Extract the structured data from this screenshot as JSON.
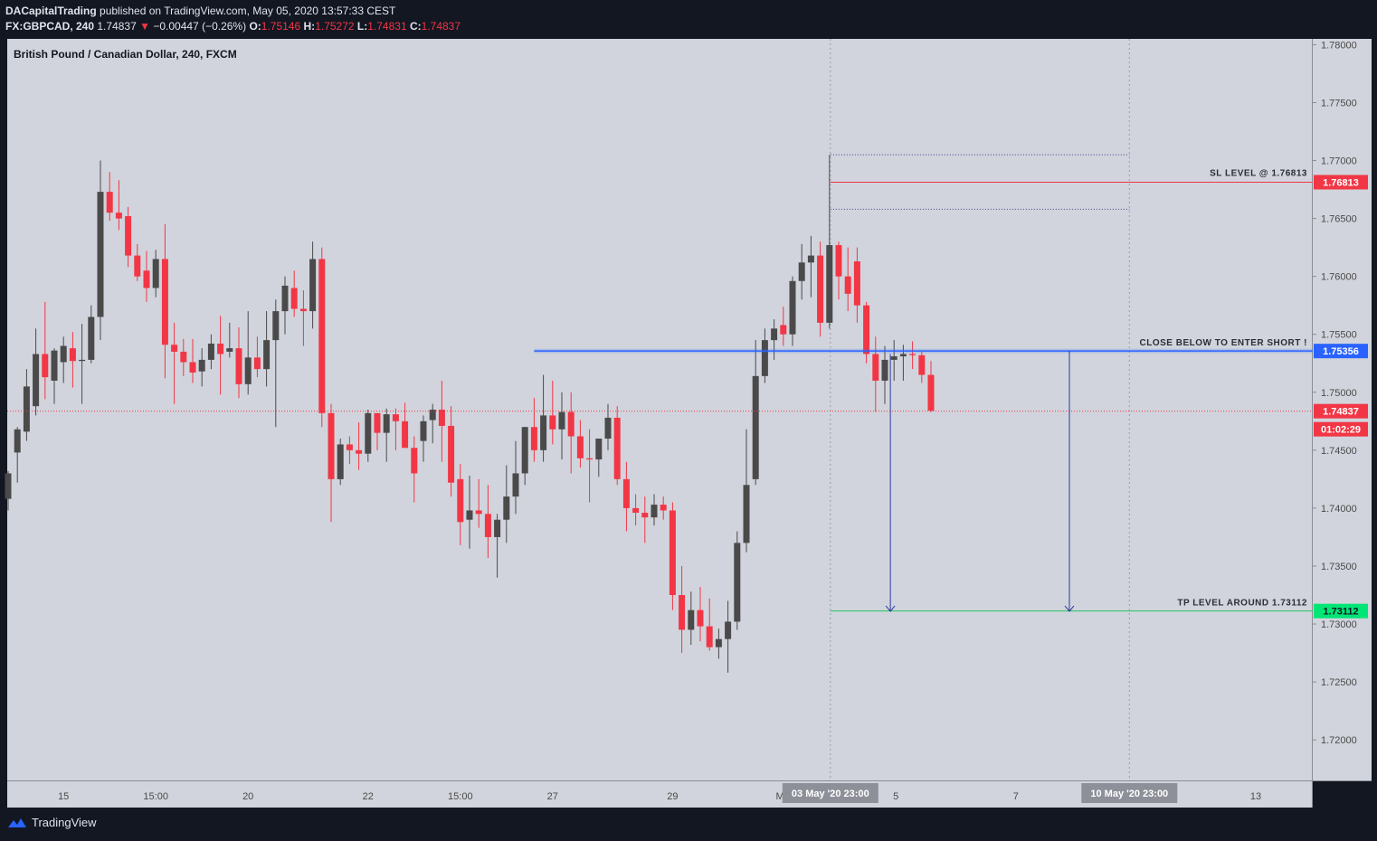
{
  "header": {
    "publisher": "DACapitalTrading",
    "published_text": "published on TradingView.com, May 05, 2020 13:57:33 CEST",
    "symbol": "FX:GBPCAD, 240",
    "last": "1.74837",
    "change_arrow": "▼",
    "change": "−0.00447 (−0.26%)",
    "o_label": "O:",
    "o": "1.75146",
    "h_label": "H:",
    "h": "1.75272",
    "l_label": "L:",
    "l": "1.74831",
    "c_label": "C:",
    "c": "1.74837"
  },
  "footer": {
    "brand": "TradingView"
  },
  "colors": {
    "background": "#d1d4dc",
    "frame": "#131722",
    "up": "#4a4a4a",
    "down": "#f23645",
    "accent_blue": "#2962ff",
    "tp_green": "#00e676"
  },
  "chart_data": {
    "type": "candlestick",
    "title": "British Pound / Canadian Dollar, 240, FXCM",
    "ylim": [
      1.7165,
      1.7805
    ],
    "y_ticks": [
      "1.78000",
      "1.77500",
      "1.77000",
      "1.76500",
      "1.76000",
      "1.75500",
      "1.75000",
      "1.74500",
      "1.74000",
      "1.73500",
      "1.73000",
      "1.72500",
      "1.72000"
    ],
    "x_ticks": [
      "15",
      "15:00",
      "20",
      "22",
      "15:00",
      "27",
      "29",
      "May",
      "5",
      "7",
      "13"
    ],
    "x_highlights": [
      "03 May '20  23:00",
      "10 May '20  23:00"
    ],
    "candles": [
      [
        1.7408,
        1.7432,
        1.7398,
        1.743
      ],
      [
        1.7448,
        1.747,
        1.7422,
        1.7468
      ],
      [
        1.7466,
        1.752,
        1.7458,
        1.7505
      ],
      [
        1.7488,
        1.7555,
        1.748,
        1.7533
      ],
      [
        1.7533,
        1.7578,
        1.7494,
        1.7513
      ],
      [
        1.751,
        1.7538,
        1.749,
        1.7536
      ],
      [
        1.7526,
        1.7548,
        1.7508,
        1.754
      ],
      [
        1.7538,
        1.7552,
        1.7504,
        1.7527
      ],
      [
        1.7527,
        1.7559,
        1.749,
        1.7528
      ],
      [
        1.7528,
        1.7575,
        1.7525,
        1.7565
      ],
      [
        1.7565,
        1.77,
        1.7545,
        1.7673
      ],
      [
        1.7673,
        1.769,
        1.7648,
        1.7655
      ],
      [
        1.7655,
        1.7683,
        1.764,
        1.765
      ],
      [
        1.7652,
        1.766,
        1.7608,
        1.7618
      ],
      [
        1.7618,
        1.7628,
        1.7596,
        1.76
      ],
      [
        1.7605,
        1.7622,
        1.7578,
        1.759
      ],
      [
        1.759,
        1.7623,
        1.7582,
        1.7615
      ],
      [
        1.7615,
        1.7645,
        1.7512,
        1.7541
      ],
      [
        1.7541,
        1.756,
        1.749,
        1.7535
      ],
      [
        1.7535,
        1.7546,
        1.7514,
        1.7526
      ],
      [
        1.7526,
        1.7546,
        1.7508,
        1.7517
      ],
      [
        1.7518,
        1.7538,
        1.7505,
        1.7528
      ],
      [
        1.7528,
        1.755,
        1.752,
        1.7542
      ],
      [
        1.7542,
        1.7566,
        1.7498,
        1.7533
      ],
      [
        1.7535,
        1.756,
        1.753,
        1.7538
      ],
      [
        1.7538,
        1.7556,
        1.7495,
        1.7507
      ],
      [
        1.7507,
        1.757,
        1.7498,
        1.753
      ],
      [
        1.753,
        1.7548,
        1.7513,
        1.752
      ],
      [
        1.752,
        1.757,
        1.7505,
        1.7545
      ],
      [
        1.7545,
        1.758,
        1.747,
        1.757
      ],
      [
        1.757,
        1.76,
        1.755,
        1.7592
      ],
      [
        1.759,
        1.7605,
        1.7565,
        1.7572
      ],
      [
        1.7572,
        1.7588,
        1.754,
        1.757
      ],
      [
        1.757,
        1.763,
        1.7555,
        1.7615
      ],
      [
        1.7615,
        1.7625,
        1.747,
        1.7482
      ],
      [
        1.7482,
        1.749,
        1.7388,
        1.7425
      ],
      [
        1.7425,
        1.746,
        1.742,
        1.7455
      ],
      [
        1.7455,
        1.7462,
        1.7438,
        1.745
      ],
      [
        1.745,
        1.7474,
        1.7433,
        1.7447
      ],
      [
        1.7447,
        1.7485,
        1.744,
        1.7482
      ],
      [
        1.7482,
        1.748,
        1.745,
        1.7465
      ],
      [
        1.7465,
        1.7486,
        1.744,
        1.7481
      ],
      [
        1.7481,
        1.7486,
        1.745,
        1.7475
      ],
      [
        1.7475,
        1.7491,
        1.7455,
        1.7452
      ],
      [
        1.7452,
        1.7462,
        1.7405,
        1.743
      ],
      [
        1.7458,
        1.748,
        1.744,
        1.7475
      ],
      [
        1.7476,
        1.749,
        1.7456,
        1.7485
      ],
      [
        1.7485,
        1.751,
        1.744,
        1.7471
      ],
      [
        1.7471,
        1.7488,
        1.741,
        1.7422
      ],
      [
        1.7425,
        1.7438,
        1.7368,
        1.7388
      ],
      [
        1.739,
        1.7428,
        1.7365,
        1.7398
      ],
      [
        1.7398,
        1.7425,
        1.7383,
        1.7395
      ],
      [
        1.7395,
        1.742,
        1.7357,
        1.7375
      ],
      [
        1.7375,
        1.7395,
        1.734,
        1.739
      ],
      [
        1.739,
        1.7437,
        1.737,
        1.741
      ],
      [
        1.741,
        1.7458,
        1.7395,
        1.743
      ],
      [
        1.743,
        1.747,
        1.742,
        1.747
      ],
      [
        1.747,
        1.7495,
        1.744,
        1.745
      ],
      [
        1.745,
        1.7515,
        1.744,
        1.748
      ],
      [
        1.748,
        1.751,
        1.7455,
        1.7468
      ],
      [
        1.7468,
        1.75,
        1.7442,
        1.7483
      ],
      [
        1.7483,
        1.75,
        1.743,
        1.7462
      ],
      [
        1.7462,
        1.7476,
        1.7435,
        1.7443
      ],
      [
        1.7443,
        1.7468,
        1.7405,
        1.7442
      ],
      [
        1.7442,
        1.746,
        1.7427,
        1.746
      ],
      [
        1.746,
        1.749,
        1.745,
        1.7478
      ],
      [
        1.7478,
        1.7488,
        1.742,
        1.7425
      ],
      [
        1.7425,
        1.744,
        1.738,
        1.74
      ],
      [
        1.74,
        1.7412,
        1.7385,
        1.7396
      ],
      [
        1.7396,
        1.741,
        1.737,
        1.7392
      ],
      [
        1.7392,
        1.7412,
        1.7385,
        1.7403
      ],
      [
        1.7403,
        1.741,
        1.739,
        1.7398
      ],
      [
        1.7398,
        1.7405,
        1.7312,
        1.7325
      ],
      [
        1.7325,
        1.735,
        1.7275,
        1.7295
      ],
      [
        1.7295,
        1.7328,
        1.7282,
        1.7312
      ],
      [
        1.7312,
        1.7332,
        1.7285,
        1.7298
      ],
      [
        1.7298,
        1.7322,
        1.7277,
        1.728
      ],
      [
        1.728,
        1.7296,
        1.727,
        1.7287
      ],
      [
        1.7287,
        1.732,
        1.7258,
        1.7302
      ],
      [
        1.7302,
        1.738,
        1.7295,
        1.737
      ],
      [
        1.737,
        1.7468,
        1.7362,
        1.742
      ],
      [
        1.7425,
        1.7545,
        1.742,
        1.7514
      ],
      [
        1.7514,
        1.7555,
        1.7508,
        1.7545
      ],
      [
        1.7545,
        1.7563,
        1.7528,
        1.7555
      ],
      [
        1.7558,
        1.7574,
        1.754,
        1.755
      ],
      [
        1.755,
        1.76,
        1.754,
        1.7596
      ],
      [
        1.7596,
        1.7628,
        1.758,
        1.7612
      ],
      [
        1.7612,
        1.7635,
        1.7582,
        1.7618
      ],
      [
        1.7618,
        1.763,
        1.7548,
        1.756
      ],
      [
        1.756,
        1.7705,
        1.7555,
        1.7627
      ],
      [
        1.7627,
        1.763,
        1.758,
        1.76
      ],
      [
        1.76,
        1.7625,
        1.757,
        1.7585
      ],
      [
        1.7613,
        1.7625,
        1.756,
        1.7575
      ],
      [
        1.7575,
        1.7578,
        1.7525,
        1.7533
      ],
      [
        1.7533,
        1.7548,
        1.7483,
        1.751
      ],
      [
        1.751,
        1.754,
        1.749,
        1.7528
      ],
      [
        1.7528,
        1.7545,
        1.751,
        1.7531
      ],
      [
        1.7531,
        1.7541,
        1.751,
        1.7533
      ],
      [
        1.7533,
        1.7544,
        1.752,
        1.7532
      ],
      [
        1.7532,
        1.7535,
        1.7508,
        1.7515
      ],
      [
        1.7515,
        1.7527,
        1.7483,
        1.7484
      ]
    ],
    "levels": [
      {
        "label": "SL LEVEL @ 1.76813",
        "price": 1.76813,
        "badge": "1.76813"
      },
      {
        "label": "CLOSE BELOW TO ENTER SHORT !",
        "price": 1.75356,
        "badge": "1.75356"
      },
      {
        "label": "TP LEVEL AROUND 1.73112",
        "price": 1.73112,
        "badge": "1.73112"
      }
    ],
    "dotted_levels": [
      1.7705,
      1.7658
    ],
    "last_price": "1.74837",
    "countdown": "01:02:29",
    "arrows": [
      {
        "from": 1.7533,
        "to": 1.7311
      },
      {
        "from": 1.7536,
        "to": 1.7311
      }
    ]
  }
}
